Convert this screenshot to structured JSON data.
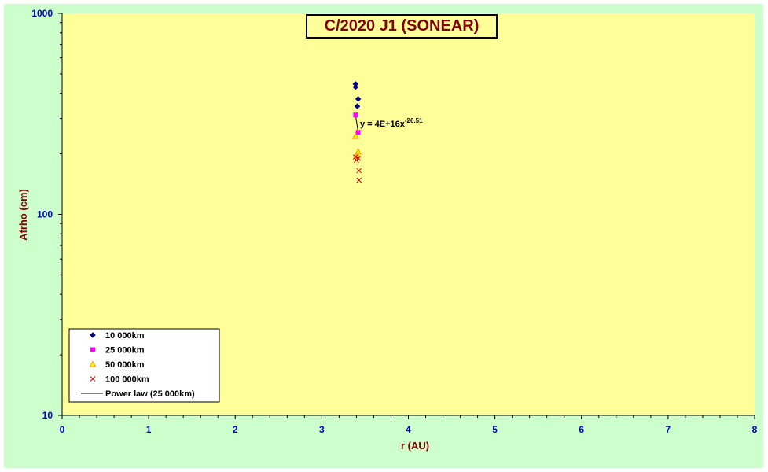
{
  "chart_data": {
    "type": "scatter",
    "title": "C/2020 J1 (SONEAR)",
    "xlabel": "r (AU)",
    "ylabel": "Afrho (cm)",
    "xlim": [
      0,
      8
    ],
    "ylim": [
      10,
      1000
    ],
    "yscale": "log",
    "x_ticks": [
      "0",
      "1",
      "2",
      "3",
      "4",
      "5",
      "6",
      "7",
      "8"
    ],
    "y_ticks": [
      "10",
      "100",
      "1000"
    ],
    "grid": false,
    "legend_position": "bottom-left",
    "background_color": "#ffff99",
    "frame_color": "#ccffcc",
    "series": [
      {
        "name": "10 000km",
        "marker": "diamond",
        "color": "#000080",
        "points": [
          [
            3.39,
            445
          ],
          [
            3.39,
            430
          ],
          [
            3.42,
            375
          ],
          [
            3.41,
            345
          ]
        ]
      },
      {
        "name": "25 000km",
        "marker": "square",
        "color": "#ff00ff",
        "points": [
          [
            3.39,
            312
          ],
          [
            3.42,
            256
          ]
        ]
      },
      {
        "name": "50 000km",
        "marker": "triangle",
        "color": "#ff9900",
        "points": [
          [
            3.39,
            245
          ],
          [
            3.42,
            205
          ],
          [
            3.41,
            196
          ]
        ]
      },
      {
        "name": "100 000km",
        "marker": "x",
        "color": "#cc0000",
        "points": [
          [
            3.39,
            193
          ],
          [
            3.42,
            190
          ],
          [
            3.4,
            186
          ],
          [
            3.43,
            165
          ],
          [
            3.43,
            148
          ]
        ]
      }
    ],
    "trendline": {
      "name": "Power law (25 000km)",
      "color": "#000000",
      "x_range": [
        3.39,
        3.42
      ],
      "equation_prefix": "y = 4E+16x",
      "equation_exponent": "-26.51"
    }
  }
}
